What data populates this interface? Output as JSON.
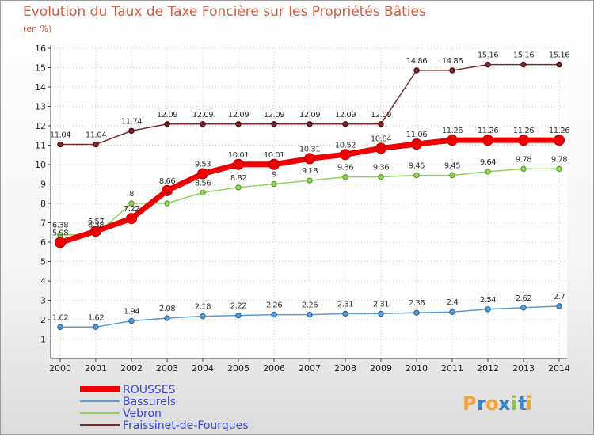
{
  "chart_data": {
    "type": "line",
    "title": "Evolution du Taux de Taxe Foncière sur les Propriétés Bâties",
    "ylabel": "(en %)",
    "xlabel": "",
    "ylim": [
      0,
      16
    ],
    "yticks": [
      1,
      2,
      3,
      4,
      5,
      6,
      7,
      8,
      9,
      10,
      11,
      12,
      13,
      14,
      15,
      16
    ],
    "x": [
      2000,
      2001,
      2002,
      2003,
      2004,
      2005,
      2006,
      2007,
      2008,
      2009,
      2010,
      2011,
      2012,
      2013,
      2014
    ],
    "series": [
      {
        "name": "Fraissinet-de-Fourques",
        "color": "#7a2a2a",
        "values": [
          11.04,
          11.04,
          11.74,
          12.09,
          12.09,
          12.09,
          12.09,
          12.09,
          12.09,
          12.09,
          14.86,
          14.86,
          15.16,
          15.16,
          15.16
        ],
        "labels": [
          "11.04",
          "11.04",
          "11.74",
          "12.09",
          "12.09",
          "12.09",
          "12.09",
          "12.09",
          "12.09",
          "12.09",
          "14.86",
          "14.86",
          "15.16",
          "15.16",
          "15.16"
        ]
      },
      {
        "name": "Vebron",
        "color": "#8dd35a",
        "values": [
          6.38,
          6.38,
          8,
          8,
          8.56,
          8.82,
          9,
          9.18,
          9.36,
          9.36,
          9.45,
          9.45,
          9.64,
          9.78,
          9.78
        ],
        "labels": [
          "6.38",
          "6.38",
          "8",
          "8",
          "8.56",
          "8.82",
          "9",
          "9.18",
          "9.36",
          "9.36",
          "9.45",
          "9.45",
          "9.64",
          "9.78",
          "9.78"
        ]
      },
      {
        "name": "Bassurels",
        "color": "#5a9bd3",
        "values": [
          1.62,
          1.62,
          1.94,
          2.08,
          2.18,
          2.22,
          2.26,
          2.26,
          2.31,
          2.31,
          2.36,
          2.4,
          2.54,
          2.62,
          2.7
        ],
        "labels": [
          "1.62",
          "1.62",
          "1.94",
          "2.08",
          "2.18",
          "2.22",
          "2.26",
          "2.26",
          "2.31",
          "2.31",
          "2.36",
          "2.4",
          "2.54",
          "2.62",
          "2.7"
        ]
      },
      {
        "name": "ROUSSES",
        "color": "#ee0000",
        "values": [
          5.98,
          6.57,
          7.22,
          8.66,
          9.53,
          10.01,
          10.01,
          10.31,
          10.52,
          10.84,
          11.06,
          11.26,
          11.26,
          11.26,
          11.26
        ],
        "labels": [
          "5.98",
          "6.57",
          "7.22",
          "8.66",
          "9.53",
          "10.01",
          "10.01",
          "10.31",
          "10.52",
          "10.84",
          "11.06",
          "11.26",
          "11.26",
          "11.26",
          "11.26"
        ]
      }
    ],
    "legend": [
      "ROUSSES",
      "Bassurels",
      "Vebron",
      "Fraissinet-de-Fourques"
    ],
    "legend_position": "bottom-left"
  },
  "logo": {
    "letters": [
      "P",
      "r",
      "o",
      "x",
      "i",
      "t",
      "i"
    ],
    "colors": [
      "#f2a33a",
      "#3b86c8",
      "#f2a33a",
      "#3b86c8",
      "#8cc63f",
      "#3b86c8",
      "#f2a33a"
    ]
  }
}
